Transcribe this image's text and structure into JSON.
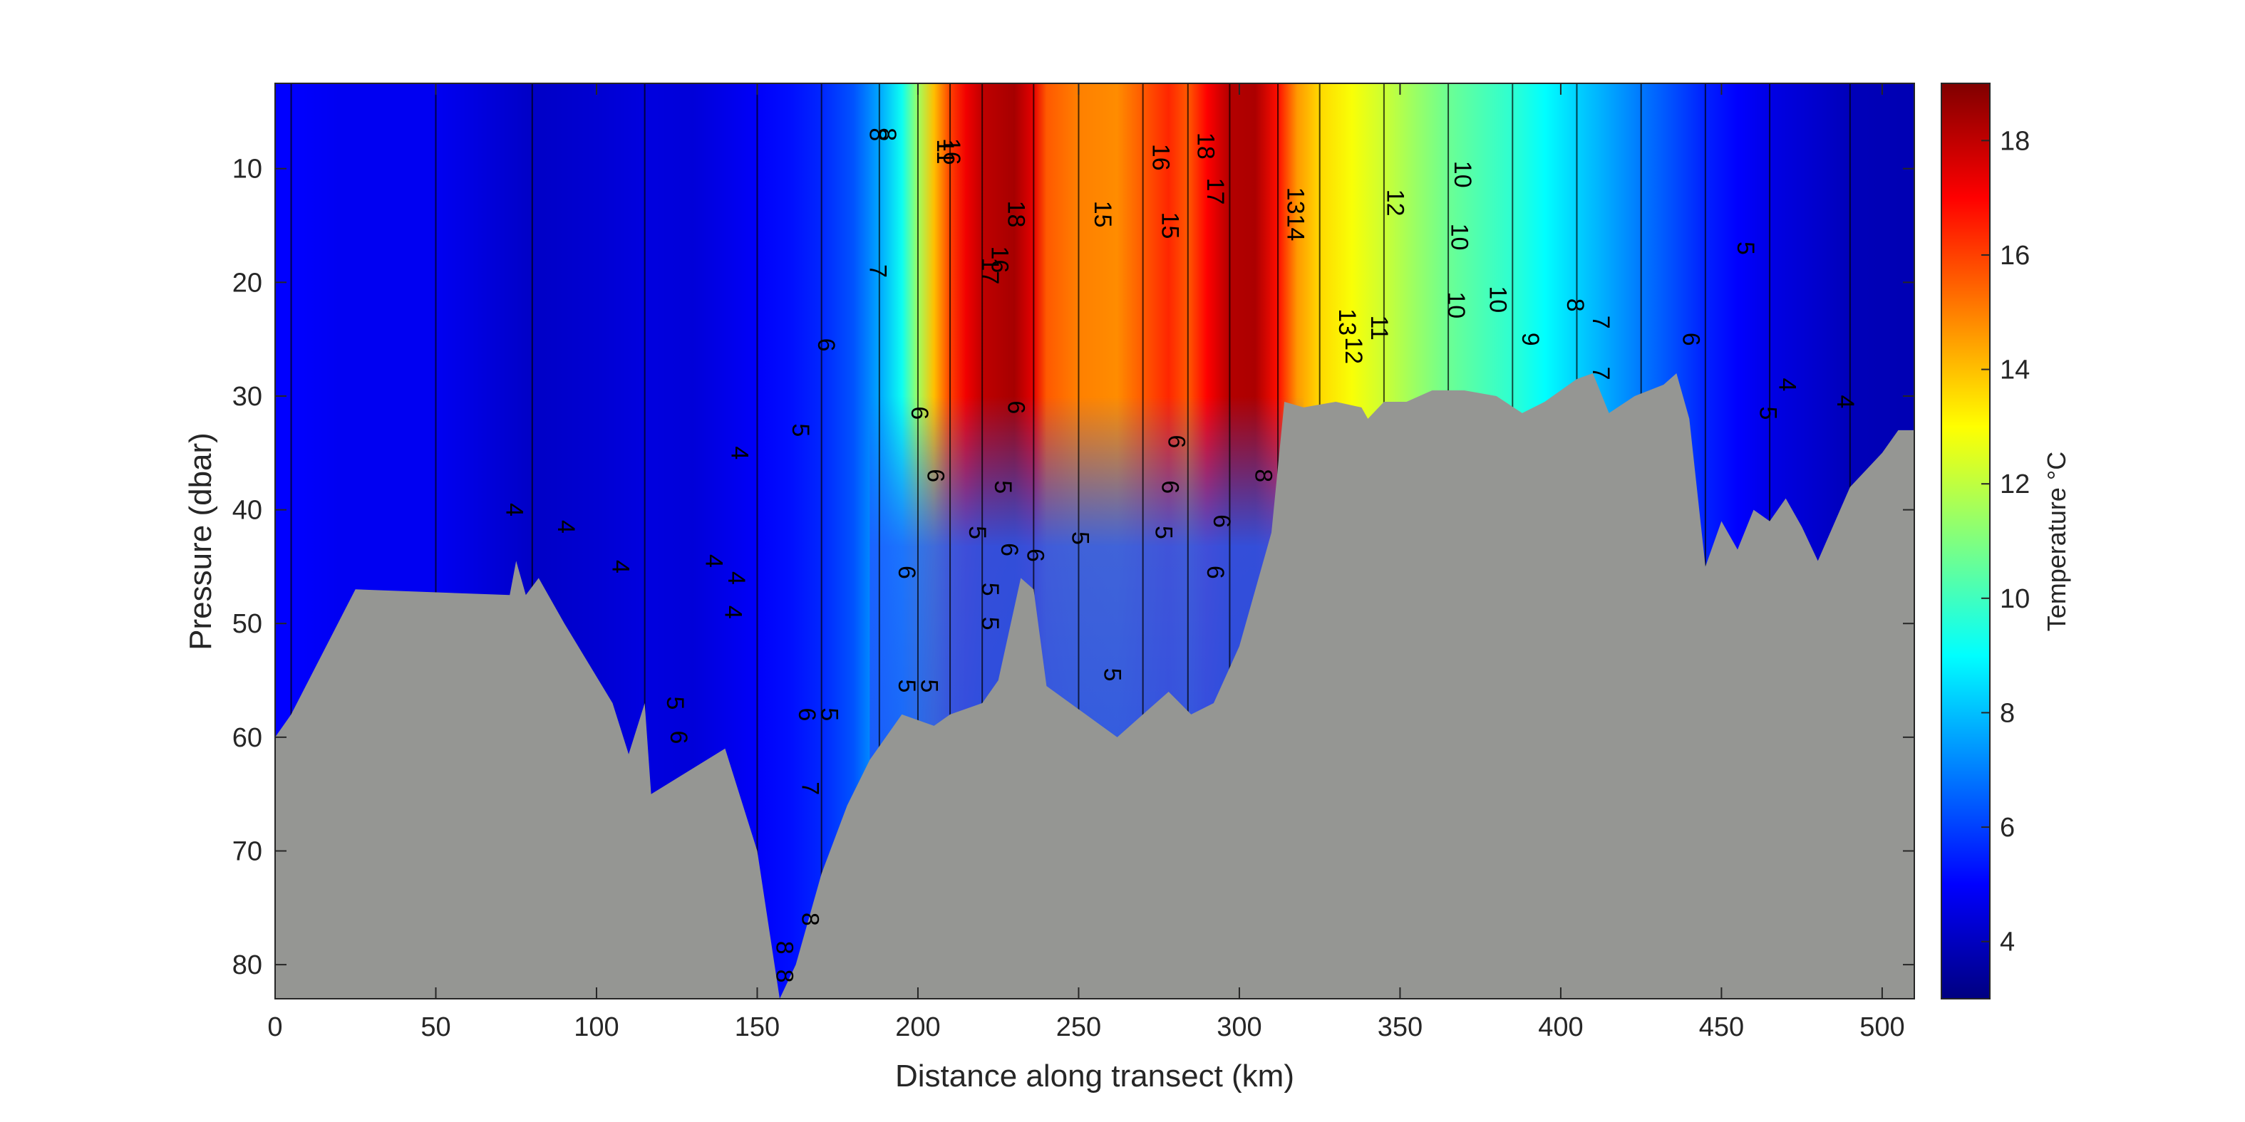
{
  "chart_data": {
    "type": "heatmap",
    "title": "",
    "xlabel": "Distance along transect (km)",
    "ylabel": "Pressure (dbar)",
    "xlim": [
      0,
      510
    ],
    "ylim": [
      83,
      2.5
    ],
    "x_ticks": [
      0,
      50,
      100,
      150,
      200,
      250,
      300,
      350,
      400,
      450,
      500
    ],
    "y_ticks": [
      10,
      20,
      30,
      40,
      50,
      60,
      70,
      80
    ],
    "colorbar": {
      "label": "Temperature °C",
      "range": [
        3,
        19
      ],
      "ticks": [
        4,
        6,
        8,
        10,
        12,
        14,
        16,
        18
      ],
      "colormap": "jet"
    },
    "columns": [
      {
        "x": 0,
        "t": 5.0
      },
      {
        "x": 5,
        "t": 5.0
      },
      {
        "x": 20,
        "t": 4.8
      },
      {
        "x": 50,
        "t": 4.8
      },
      {
        "x": 72,
        "t": 4.3
      },
      {
        "x": 80,
        "t": 4.1
      },
      {
        "x": 100,
        "t": 4.3
      },
      {
        "x": 115,
        "t": 4.5
      },
      {
        "x": 130,
        "t": 4.4
      },
      {
        "x": 150,
        "t": 4.9
      },
      {
        "x": 160,
        "t": 5.2
      },
      {
        "x": 170,
        "t": 5.6
      },
      {
        "x": 180,
        "t": 6.3
      },
      {
        "x": 188,
        "t": 7.6
      },
      {
        "x": 195,
        "t": 9.2
      },
      {
        "x": 200,
        "t": 11.5
      },
      {
        "x": 205,
        "t": 14.0
      },
      {
        "x": 210,
        "t": 16.0
      },
      {
        "x": 215,
        "t": 17.2
      },
      {
        "x": 220,
        "t": 18.0
      },
      {
        "x": 230,
        "t": 18.4
      },
      {
        "x": 236,
        "t": 17.4
      },
      {
        "x": 240,
        "t": 15.6
      },
      {
        "x": 250,
        "t": 15.0
      },
      {
        "x": 262,
        "t": 14.8
      },
      {
        "x": 270,
        "t": 15.6
      },
      {
        "x": 278,
        "t": 16.4
      },
      {
        "x": 284,
        "t": 15.6
      },
      {
        "x": 290,
        "t": 17.0
      },
      {
        "x": 297,
        "t": 18.2
      },
      {
        "x": 305,
        "t": 18.3
      },
      {
        "x": 312,
        "t": 16.8
      },
      {
        "x": 318,
        "t": 14.6
      },
      {
        "x": 325,
        "t": 13.6
      },
      {
        "x": 335,
        "t": 12.9
      },
      {
        "x": 345,
        "t": 12.2
      },
      {
        "x": 355,
        "t": 11.4
      },
      {
        "x": 365,
        "t": 10.7
      },
      {
        "x": 375,
        "t": 10.2
      },
      {
        "x": 385,
        "t": 9.7
      },
      {
        "x": 395,
        "t": 9.0
      },
      {
        "x": 405,
        "t": 8.3
      },
      {
        "x": 415,
        "t": 7.6
      },
      {
        "x": 425,
        "t": 6.9
      },
      {
        "x": 435,
        "t": 6.2
      },
      {
        "x": 445,
        "t": 5.5
      },
      {
        "x": 455,
        "t": 5.0
      },
      {
        "x": 465,
        "t": 4.6
      },
      {
        "x": 480,
        "t": 4.2
      },
      {
        "x": 490,
        "t": 3.9
      },
      {
        "x": 510,
        "t": 3.8
      }
    ],
    "deep_layer": {
      "from_x": 185,
      "to_x": 320,
      "pressure": 30,
      "t": 6.0
    },
    "seabed_profile": [
      {
        "x": 0,
        "p": 60
      },
      {
        "x": 5,
        "p": 58
      },
      {
        "x": 25,
        "p": 47
      },
      {
        "x": 73,
        "p": 47.5
      },
      {
        "x": 75,
        "p": 44.5
      },
      {
        "x": 78,
        "p": 47.5
      },
      {
        "x": 82,
        "p": 46
      },
      {
        "x": 90,
        "p": 50
      },
      {
        "x": 105,
        "p": 57
      },
      {
        "x": 110,
        "p": 61.5
      },
      {
        "x": 115,
        "p": 57
      },
      {
        "x": 117,
        "p": 65
      },
      {
        "x": 140,
        "p": 61
      },
      {
        "x": 150,
        "p": 70
      },
      {
        "x": 157,
        "p": 83
      },
      {
        "x": 162,
        "p": 80
      },
      {
        "x": 170,
        "p": 72
      },
      {
        "x": 178,
        "p": 66
      },
      {
        "x": 185,
        "p": 62
      },
      {
        "x": 195,
        "p": 58
      },
      {
        "x": 205,
        "p": 59
      },
      {
        "x": 210,
        "p": 58
      },
      {
        "x": 220,
        "p": 57
      },
      {
        "x": 225,
        "p": 55
      },
      {
        "x": 232,
        "p": 46
      },
      {
        "x": 236,
        "p": 47
      },
      {
        "x": 240,
        "p": 55.5
      },
      {
        "x": 262,
        "p": 60
      },
      {
        "x": 270,
        "p": 58
      },
      {
        "x": 278,
        "p": 56
      },
      {
        "x": 285,
        "p": 58
      },
      {
        "x": 292,
        "p": 57
      },
      {
        "x": 300,
        "p": 52
      },
      {
        "x": 305,
        "p": 47
      },
      {
        "x": 310,
        "p": 42
      },
      {
        "x": 314,
        "p": 30.5
      },
      {
        "x": 320,
        "p": 31
      },
      {
        "x": 330,
        "p": 30.5
      },
      {
        "x": 338,
        "p": 31
      },
      {
        "x": 340,
        "p": 32
      },
      {
        "x": 345,
        "p": 30.5
      },
      {
        "x": 352,
        "p": 30.5
      },
      {
        "x": 360,
        "p": 29.5
      },
      {
        "x": 370,
        "p": 29.5
      },
      {
        "x": 380,
        "p": 30
      },
      {
        "x": 388,
        "p": 31.5
      },
      {
        "x": 395,
        "p": 30.5
      },
      {
        "x": 405,
        "p": 28.5
      },
      {
        "x": 410,
        "p": 28
      },
      {
        "x": 415,
        "p": 31.5
      },
      {
        "x": 423,
        "p": 30
      },
      {
        "x": 432,
        "p": 29
      },
      {
        "x": 436,
        "p": 28
      },
      {
        "x": 440,
        "p": 32
      },
      {
        "x": 445,
        "p": 45
      },
      {
        "x": 450,
        "p": 41
      },
      {
        "x": 455,
        "p": 43.5
      },
      {
        "x": 460,
        "p": 40
      },
      {
        "x": 465,
        "p": 41
      },
      {
        "x": 470,
        "p": 39
      },
      {
        "x": 475,
        "p": 41.5
      },
      {
        "x": 480,
        "p": 44.5
      },
      {
        "x": 490,
        "p": 38
      },
      {
        "x": 500,
        "p": 35
      },
      {
        "x": 505,
        "p": 33
      },
      {
        "x": 510,
        "p": 33
      }
    ],
    "contour_labels": [
      {
        "x": 74,
        "p": 40,
        "text": "4"
      },
      {
        "x": 90,
        "p": 41.5,
        "text": "4"
      },
      {
        "x": 107,
        "p": 45,
        "text": "4"
      },
      {
        "x": 136,
        "p": 44.5,
        "text": "4"
      },
      {
        "x": 143,
        "p": 46,
        "text": "4"
      },
      {
        "x": 142,
        "p": 49,
        "text": "4"
      },
      {
        "x": 144,
        "p": 35,
        "text": "4"
      },
      {
        "x": 163,
        "p": 33,
        "text": "5"
      },
      {
        "x": 171,
        "p": 25.5,
        "text": "6"
      },
      {
        "x": 187,
        "p": 19,
        "text": "7"
      },
      {
        "x": 187,
        "p": 7,
        "text": "8"
      },
      {
        "x": 190,
        "p": 7,
        "text": "8"
      },
      {
        "x": 208,
        "p": 8.5,
        "text": "11"
      },
      {
        "x": 210,
        "p": 8.5,
        "text": "16"
      },
      {
        "x": 230,
        "p": 14,
        "text": "18"
      },
      {
        "x": 222,
        "p": 19,
        "text": "17"
      },
      {
        "x": 225,
        "p": 18,
        "text": "16"
      },
      {
        "x": 257,
        "p": 14,
        "text": "15"
      },
      {
        "x": 275,
        "p": 9,
        "text": "16"
      },
      {
        "x": 278,
        "p": 15,
        "text": "15"
      },
      {
        "x": 289,
        "p": 8,
        "text": "18"
      },
      {
        "x": 292,
        "p": 12,
        "text": "17"
      },
      {
        "x": 317,
        "p": 14,
        "text": "1314"
      },
      {
        "x": 333,
        "p": 23.5,
        "text": "13"
      },
      {
        "x": 335,
        "p": 26,
        "text": "12"
      },
      {
        "x": 343,
        "p": 24,
        "text": "11"
      },
      {
        "x": 348,
        "p": 13,
        "text": "12"
      },
      {
        "x": 369,
        "p": 10.5,
        "text": "10"
      },
      {
        "x": 368,
        "p": 16,
        "text": "10"
      },
      {
        "x": 367,
        "p": 22,
        "text": "10"
      },
      {
        "x": 380,
        "p": 21.5,
        "text": "10"
      },
      {
        "x": 390,
        "p": 25,
        "text": "9"
      },
      {
        "x": 404,
        "p": 22,
        "text": "8"
      },
      {
        "x": 412,
        "p": 23.5,
        "text": "7"
      },
      {
        "x": 412,
        "p": 28,
        "text": "7"
      },
      {
        "x": 440,
        "p": 25,
        "text": "6"
      },
      {
        "x": 457,
        "p": 17,
        "text": "5"
      },
      {
        "x": 470,
        "p": 29,
        "text": "4"
      },
      {
        "x": 464,
        "p": 31.5,
        "text": "5"
      },
      {
        "x": 488,
        "p": 30.5,
        "text": "4"
      },
      {
        "x": 200,
        "p": 31.5,
        "text": "6"
      },
      {
        "x": 205,
        "p": 37,
        "text": "6"
      },
      {
        "x": 218,
        "p": 42,
        "text": "5"
      },
      {
        "x": 226,
        "p": 38,
        "text": "5"
      },
      {
        "x": 230,
        "p": 31,
        "text": "6"
      },
      {
        "x": 228,
        "p": 43.5,
        "text": "6"
      },
      {
        "x": 196,
        "p": 45.5,
        "text": "6"
      },
      {
        "x": 222,
        "p": 47,
        "text": "5"
      },
      {
        "x": 222,
        "p": 50,
        "text": "5"
      },
      {
        "x": 236,
        "p": 44,
        "text": "6"
      },
      {
        "x": 250,
        "p": 42.5,
        "text": "5"
      },
      {
        "x": 196,
        "p": 55.5,
        "text": "5"
      },
      {
        "x": 203,
        "p": 55.5,
        "text": "5"
      },
      {
        "x": 260,
        "p": 54.5,
        "text": "5"
      },
      {
        "x": 280,
        "p": 34,
        "text": "6"
      },
      {
        "x": 278,
        "p": 38,
        "text": "6"
      },
      {
        "x": 276,
        "p": 42,
        "text": "5"
      },
      {
        "x": 294,
        "p": 41,
        "text": "6"
      },
      {
        "x": 292,
        "p": 45.5,
        "text": "6"
      },
      {
        "x": 307,
        "p": 37,
        "text": "8"
      },
      {
        "x": 124,
        "p": 57,
        "text": "5"
      },
      {
        "x": 125,
        "p": 60,
        "text": "6"
      },
      {
        "x": 165,
        "p": 58,
        "text": "6"
      },
      {
        "x": 172,
        "p": 58,
        "text": "5"
      },
      {
        "x": 166,
        "p": 64.5,
        "text": "7"
      },
      {
        "x": 166,
        "p": 76,
        "text": "8"
      },
      {
        "x": 158,
        "p": 78.5,
        "text": "8"
      },
      {
        "x": 158,
        "p": 81,
        "text": "8"
      }
    ]
  }
}
